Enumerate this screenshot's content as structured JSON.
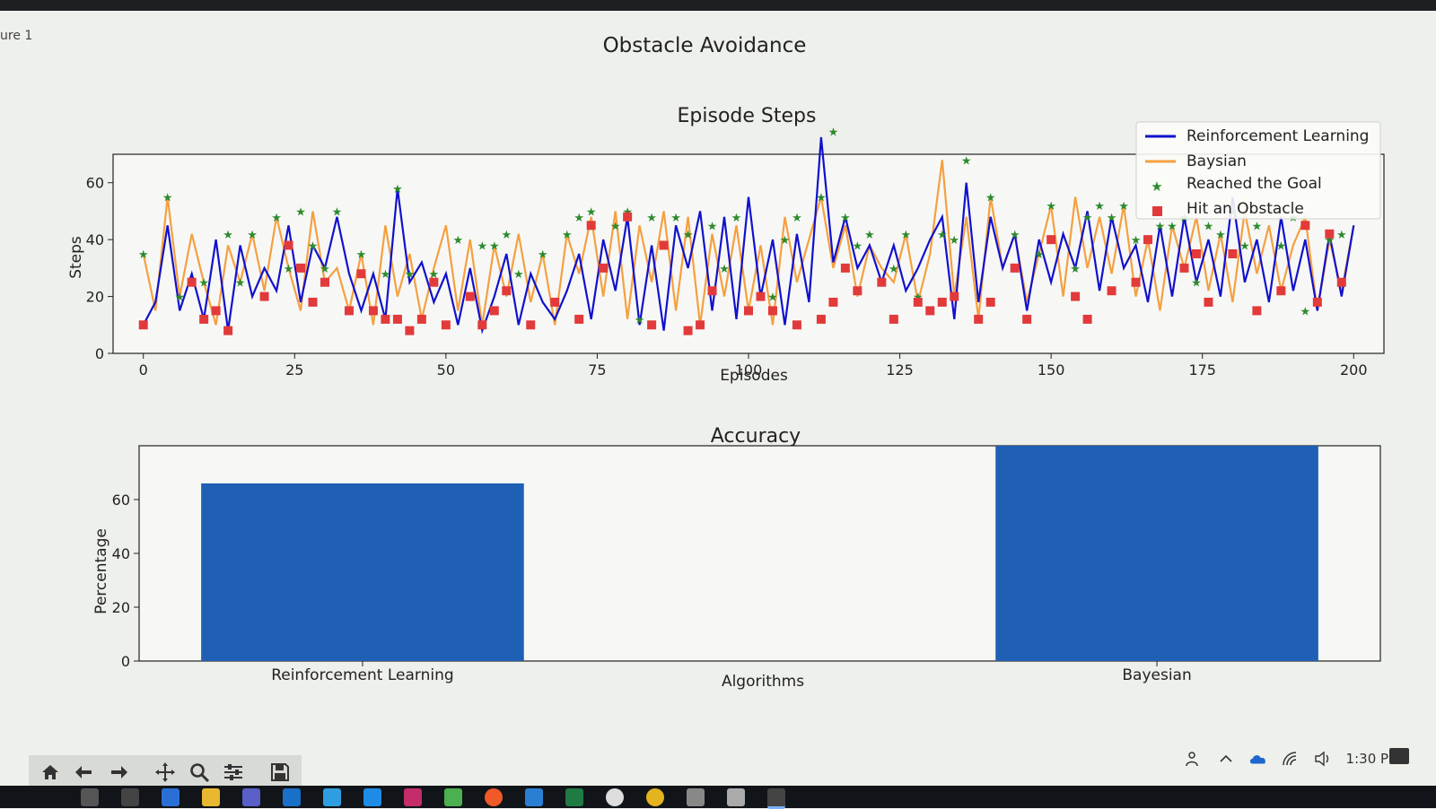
{
  "window": {
    "title_fragment": "ure 1"
  },
  "figure": {
    "suptitle": "Obstacle Avoidance"
  },
  "colors": {
    "rl": "#1111cc",
    "bayesian": "#f5a040",
    "goal": "#2c8a2c",
    "obstacle": "#e23a3a",
    "bar": "#1f5fb4",
    "axis": "#222222"
  },
  "chart_data": [
    {
      "type": "line",
      "title": "Episode Steps",
      "xlabel": "Episodes",
      "ylabel": "Steps",
      "xlim": [
        -5,
        205
      ],
      "ylim": [
        0,
        70
      ],
      "xticks": [
        0,
        25,
        50,
        75,
        100,
        125,
        150,
        175,
        200
      ],
      "yticks": [
        0,
        20,
        40,
        60
      ],
      "legend_position": "top-right",
      "legend": [
        "Reinforcement Learning",
        "Baysian",
        "Reached the Goal",
        "Hit an Obstacle"
      ],
      "series": [
        {
          "name": "Reinforcement Learning",
          "x": [
            0,
            2,
            4,
            6,
            8,
            10,
            12,
            14,
            16,
            18,
            20,
            22,
            24,
            26,
            28,
            30,
            32,
            34,
            36,
            38,
            40,
            42,
            44,
            46,
            48,
            50,
            52,
            54,
            56,
            58,
            60,
            62,
            64,
            66,
            68,
            70,
            72,
            74,
            76,
            78,
            80,
            82,
            84,
            86,
            88,
            90,
            92,
            94,
            96,
            98,
            100,
            102,
            104,
            106,
            108,
            110,
            112,
            114,
            116,
            118,
            120,
            122,
            124,
            126,
            128,
            130,
            132,
            134,
            136,
            138,
            140,
            142,
            144,
            146,
            148,
            150,
            152,
            154,
            156,
            158,
            160,
            162,
            164,
            166,
            168,
            170,
            172,
            174,
            176,
            178,
            180,
            182,
            184,
            186,
            188,
            190,
            192,
            194,
            196,
            198,
            200
          ],
          "values": [
            10,
            18,
            45,
            15,
            28,
            12,
            40,
            8,
            38,
            20,
            30,
            22,
            45,
            18,
            38,
            30,
            48,
            28,
            15,
            28,
            12,
            58,
            25,
            32,
            18,
            28,
            10,
            30,
            8,
            20,
            35,
            10,
            28,
            18,
            12,
            22,
            35,
            12,
            40,
            22,
            48,
            10,
            38,
            8,
            45,
            30,
            50,
            15,
            48,
            12,
            55,
            20,
            40,
            10,
            42,
            18,
            76,
            32,
            48,
            30,
            38,
            25,
            38,
            22,
            30,
            40,
            48,
            12,
            60,
            18,
            48,
            30,
            42,
            15,
            40,
            25,
            42,
            30,
            50,
            22,
            48,
            30,
            38,
            18,
            45,
            20,
            48,
            25,
            40,
            20,
            55,
            25,
            40,
            18,
            48,
            22,
            40,
            15,
            42,
            20,
            45
          ]
        },
        {
          "name": "Baysian",
          "x": [
            0,
            2,
            4,
            6,
            8,
            10,
            12,
            14,
            16,
            18,
            20,
            22,
            24,
            26,
            28,
            30,
            32,
            34,
            36,
            38,
            40,
            42,
            44,
            46,
            48,
            50,
            52,
            54,
            56,
            58,
            60,
            62,
            64,
            66,
            68,
            70,
            72,
            74,
            76,
            78,
            80,
            82,
            84,
            86,
            88,
            90,
            92,
            94,
            96,
            98,
            100,
            102,
            104,
            106,
            108,
            110,
            112,
            114,
            116,
            118,
            120,
            122,
            124,
            126,
            128,
            130,
            132,
            134,
            136,
            138,
            140,
            142,
            144,
            146,
            148,
            150,
            152,
            154,
            156,
            158,
            160,
            162,
            164,
            166,
            168,
            170,
            172,
            174,
            176,
            178,
            180,
            182,
            184,
            186,
            188,
            190,
            192,
            194,
            196,
            198,
            200
          ],
          "values": [
            35,
            15,
            55,
            20,
            42,
            25,
            10,
            38,
            25,
            42,
            22,
            48,
            30,
            15,
            50,
            25,
            30,
            15,
            35,
            10,
            45,
            20,
            35,
            12,
            30,
            45,
            15,
            40,
            10,
            38,
            20,
            42,
            18,
            35,
            10,
            42,
            28,
            48,
            20,
            50,
            12,
            45,
            25,
            50,
            15,
            48,
            10,
            42,
            20,
            45,
            15,
            38,
            10,
            48,
            25,
            40,
            55,
            30,
            45,
            20,
            38,
            30,
            25,
            42,
            18,
            35,
            68,
            20,
            48,
            12,
            55,
            30,
            42,
            18,
            35,
            52,
            20,
            55,
            30,
            48,
            28,
            52,
            20,
            40,
            15,
            45,
            30,
            48,
            22,
            42,
            18,
            50,
            28,
            45,
            22,
            38,
            48,
            15,
            40,
            22,
            45
          ]
        }
      ],
      "markers": {
        "Reached the Goal": {
          "x": [
            0,
            4,
            6,
            10,
            14,
            16,
            18,
            22,
            24,
            26,
            28,
            30,
            32,
            36,
            40,
            42,
            44,
            48,
            52,
            56,
            58,
            60,
            62,
            66,
            70,
            72,
            74,
            78,
            80,
            82,
            84,
            88,
            90,
            94,
            96,
            98,
            104,
            106,
            108,
            112,
            114,
            116,
            118,
            120,
            124,
            126,
            128,
            132,
            134,
            136,
            140,
            144,
            148,
            150,
            154,
            156,
            158,
            160,
            162,
            164,
            168,
            170,
            172,
            174,
            176,
            178,
            180,
            182,
            184,
            186,
            188,
            190,
            192,
            196,
            198
          ],
          "values": [
            35,
            55,
            20,
            25,
            42,
            25,
            42,
            48,
            30,
            50,
            38,
            30,
            50,
            35,
            28,
            58,
            28,
            28,
            40,
            38,
            38,
            42,
            28,
            35,
            42,
            48,
            50,
            45,
            50,
            12,
            48,
            48,
            42,
            45,
            30,
            48,
            20,
            40,
            48,
            55,
            78,
            48,
            38,
            42,
            30,
            42,
            20,
            42,
            40,
            68,
            55,
            42,
            35,
            52,
            30,
            48,
            52,
            48,
            52,
            40,
            45,
            45,
            48,
            25,
            45,
            42,
            50,
            38,
            45,
            50,
            38,
            48,
            15,
            40,
            42
          ]
        },
        "Hit an Obstacle": {
          "x": [
            0,
            8,
            10,
            12,
            14,
            20,
            24,
            26,
            28,
            30,
            34,
            36,
            38,
            40,
            42,
            44,
            46,
            48,
            50,
            54,
            56,
            58,
            60,
            64,
            68,
            72,
            74,
            76,
            80,
            84,
            86,
            90,
            92,
            94,
            100,
            102,
            104,
            108,
            112,
            114,
            116,
            118,
            122,
            124,
            128,
            130,
            132,
            134,
            138,
            140,
            144,
            146,
            150,
            154,
            156,
            160,
            164,
            166,
            172,
            174,
            176,
            180,
            184,
            188,
            192,
            194,
            196,
            198
          ],
          "values": [
            10,
            25,
            12,
            15,
            8,
            20,
            38,
            30,
            18,
            25,
            15,
            28,
            15,
            12,
            12,
            8,
            12,
            25,
            10,
            20,
            10,
            15,
            22,
            10,
            18,
            12,
            45,
            30,
            48,
            10,
            38,
            8,
            10,
            22,
            15,
            20,
            15,
            10,
            12,
            18,
            30,
            22,
            25,
            12,
            18,
            15,
            18,
            20,
            12,
            18,
            30,
            12,
            40,
            20,
            12,
            22,
            25,
            40,
            30,
            35,
            18,
            35,
            15,
            22,
            45,
            18,
            42,
            25
          ]
        }
      }
    },
    {
      "type": "bar",
      "title": "Accuracy",
      "xlabel": "Algorithms",
      "ylabel": "Percentage",
      "ylim": [
        0,
        80
      ],
      "yticks": [
        0,
        20,
        40,
        60
      ],
      "categories": [
        "Reinforcement Learning",
        "Bayesian"
      ],
      "values": [
        66,
        80
      ]
    }
  ],
  "toolbar": {
    "buttons": [
      "home-icon",
      "back-icon",
      "forward-icon",
      "pan-icon",
      "zoom-icon",
      "configure-icon",
      "save-icon"
    ]
  },
  "tray": {
    "clock": "1:30 PM"
  }
}
